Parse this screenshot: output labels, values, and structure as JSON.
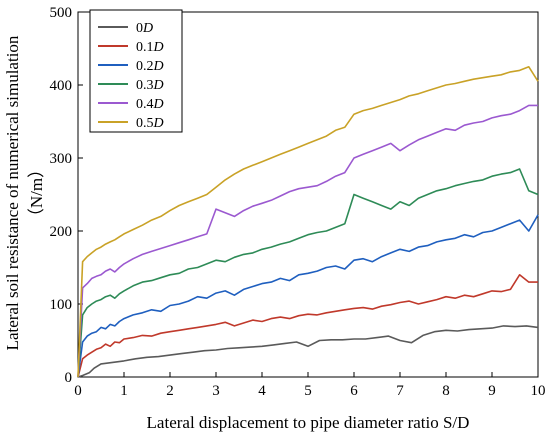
{
  "chart_data": {
    "type": "line",
    "xlabel": "Lateral displacement to pipe diameter ratio S/D",
    "ylabel_line1": "Lateral soil resistance of numerical simulation",
    "ylabel_line2": "（N/m）",
    "xlim": [
      0,
      10
    ],
    "ylim": [
      0,
      500
    ],
    "x_ticks": [
      0,
      1,
      2,
      3,
      4,
      5,
      6,
      7,
      8,
      9,
      10
    ],
    "y_ticks": [
      0,
      100,
      200,
      300,
      400,
      500
    ],
    "legend_position": "top-left",
    "grid": false,
    "series": [
      {
        "name": "0D",
        "color": "#5a5a5a",
        "x": [
          0,
          0.1,
          0.25,
          0.35,
          0.5,
          0.75,
          1,
          1.25,
          1.5,
          1.75,
          2,
          2.25,
          2.5,
          2.75,
          3,
          3.25,
          3.5,
          3.75,
          4,
          4.25,
          4.5,
          4.75,
          5,
          5.25,
          5.5,
          5.75,
          6,
          6.25,
          6.5,
          6.75,
          7,
          7.25,
          7.5,
          7.75,
          8,
          8.25,
          8.5,
          8.75,
          9,
          9.25,
          9.5,
          9.75,
          10
        ],
        "y": [
          0,
          2,
          6,
          12,
          18,
          20,
          22,
          25,
          27,
          28,
          30,
          32,
          34,
          36,
          37,
          39,
          40,
          41,
          42,
          44,
          46,
          48,
          42,
          50,
          51,
          51,
          52,
          52,
          54,
          56,
          50,
          47,
          57,
          62,
          64,
          63,
          65,
          66,
          67,
          70,
          69,
          70,
          68
        ]
      },
      {
        "name": "0.1D",
        "color": "#c0392b",
        "x": [
          0,
          0.1,
          0.2,
          0.3,
          0.4,
          0.5,
          0.6,
          0.7,
          0.8,
          0.9,
          1,
          1.2,
          1.4,
          1.6,
          1.8,
          2,
          2.2,
          2.4,
          2.6,
          2.8,
          3,
          3.2,
          3.4,
          3.6,
          3.8,
          4,
          4.2,
          4.4,
          4.6,
          4.8,
          5,
          5.2,
          5.4,
          5.6,
          5.8,
          6,
          6.2,
          6.4,
          6.6,
          6.8,
          7,
          7.2,
          7.4,
          7.6,
          7.8,
          8,
          8.2,
          8.4,
          8.6,
          8.8,
          9,
          9.2,
          9.4,
          9.6,
          9.8,
          10
        ],
        "y": [
          0,
          25,
          30,
          34,
          38,
          40,
          45,
          42,
          48,
          47,
          52,
          54,
          57,
          56,
          60,
          62,
          64,
          66,
          68,
          70,
          72,
          75,
          70,
          74,
          78,
          76,
          80,
          82,
          80,
          84,
          86,
          85,
          88,
          90,
          92,
          94,
          95,
          93,
          97,
          99,
          102,
          104,
          100,
          103,
          106,
          110,
          108,
          112,
          110,
          114,
          118,
          117,
          120,
          140,
          130,
          130
        ]
      },
      {
        "name": "0.2D",
        "color": "#1f5fbf",
        "x": [
          0,
          0.1,
          0.2,
          0.3,
          0.4,
          0.5,
          0.6,
          0.7,
          0.8,
          0.9,
          1,
          1.2,
          1.4,
          1.6,
          1.8,
          2,
          2.2,
          2.4,
          2.6,
          2.8,
          3,
          3.2,
          3.4,
          3.6,
          3.8,
          4,
          4.2,
          4.4,
          4.6,
          4.8,
          5,
          5.2,
          5.4,
          5.6,
          5.8,
          6,
          6.2,
          6.4,
          6.6,
          6.8,
          7,
          7.2,
          7.4,
          7.6,
          7.8,
          8,
          8.2,
          8.4,
          8.6,
          8.8,
          9,
          9.2,
          9.4,
          9.6,
          9.8,
          10
        ],
        "y": [
          0,
          48,
          56,
          60,
          62,
          68,
          66,
          72,
          70,
          76,
          80,
          85,
          88,
          92,
          90,
          98,
          100,
          104,
          110,
          108,
          115,
          118,
          112,
          120,
          124,
          128,
          130,
          135,
          132,
          140,
          142,
          145,
          150,
          152,
          148,
          160,
          162,
          158,
          165,
          170,
          175,
          172,
          178,
          180,
          185,
          188,
          190,
          195,
          192,
          198,
          200,
          205,
          210,
          215,
          200,
          222
        ]
      },
      {
        "name": "0.3D",
        "color": "#2e8b57",
        "x": [
          0,
          0.1,
          0.2,
          0.3,
          0.4,
          0.5,
          0.6,
          0.7,
          0.8,
          0.9,
          1,
          1.2,
          1.4,
          1.6,
          1.8,
          2,
          2.2,
          2.4,
          2.6,
          2.8,
          3,
          3.2,
          3.4,
          3.6,
          3.8,
          4,
          4.2,
          4.4,
          4.6,
          4.8,
          5,
          5.2,
          5.4,
          5.6,
          5.8,
          6,
          6.2,
          6.4,
          6.6,
          6.8,
          7,
          7.2,
          7.4,
          7.6,
          7.8,
          8,
          8.2,
          8.4,
          8.6,
          8.8,
          9,
          9.2,
          9.4,
          9.6,
          9.8,
          10
        ],
        "y": [
          0,
          85,
          95,
          100,
          104,
          106,
          110,
          112,
          108,
          114,
          118,
          125,
          130,
          132,
          136,
          140,
          142,
          148,
          150,
          155,
          160,
          158,
          164,
          168,
          170,
          175,
          178,
          182,
          185,
          190,
          195,
          198,
          200,
          205,
          210,
          250,
          245,
          240,
          235,
          230,
          240,
          235,
          245,
          250,
          255,
          258,
          262,
          265,
          268,
          270,
          275,
          278,
          280,
          285,
          255,
          250
        ]
      },
      {
        "name": "0.4D",
        "color": "#9b59d0",
        "x": [
          0,
          0.1,
          0.2,
          0.3,
          0.4,
          0.5,
          0.6,
          0.7,
          0.8,
          0.9,
          1,
          1.2,
          1.4,
          1.6,
          1.8,
          2,
          2.2,
          2.4,
          2.6,
          2.8,
          3,
          3.2,
          3.4,
          3.6,
          3.8,
          4,
          4.2,
          4.4,
          4.6,
          4.8,
          5,
          5.2,
          5.4,
          5.6,
          5.8,
          6,
          6.2,
          6.4,
          6.6,
          6.8,
          7,
          7.2,
          7.4,
          7.6,
          7.8,
          8,
          8.2,
          8.4,
          8.6,
          8.8,
          9,
          9.2,
          9.4,
          9.6,
          9.8,
          10
        ],
        "y": [
          0,
          122,
          128,
          135,
          138,
          140,
          145,
          148,
          144,
          150,
          155,
          162,
          168,
          172,
          176,
          180,
          184,
          188,
          192,
          196,
          230,
          225,
          220,
          228,
          234,
          238,
          242,
          248,
          254,
          258,
          260,
          262,
          268,
          275,
          280,
          300,
          305,
          310,
          315,
          320,
          310,
          318,
          325,
          330,
          335,
          340,
          338,
          345,
          348,
          350,
          355,
          358,
          360,
          365,
          372,
          372
        ]
      },
      {
        "name": "0.5D",
        "color": "#c9a227",
        "x": [
          0,
          0.1,
          0.2,
          0.3,
          0.4,
          0.5,
          0.6,
          0.7,
          0.8,
          0.9,
          1,
          1.2,
          1.4,
          1.6,
          1.8,
          2,
          2.2,
          2.4,
          2.6,
          2.8,
          3,
          3.2,
          3.4,
          3.6,
          3.8,
          4,
          4.2,
          4.4,
          4.6,
          4.8,
          5,
          5.2,
          5.4,
          5.6,
          5.8,
          6,
          6.2,
          6.4,
          6.6,
          6.8,
          7,
          7.2,
          7.4,
          7.6,
          7.8,
          8,
          8.2,
          8.4,
          8.6,
          8.8,
          9,
          9.2,
          9.4,
          9.6,
          9.8,
          10
        ],
        "y": [
          0,
          158,
          165,
          170,
          175,
          178,
          182,
          185,
          188,
          192,
          196,
          202,
          208,
          215,
          220,
          228,
          235,
          240,
          245,
          250,
          260,
          270,
          278,
          285,
          290,
          295,
          300,
          305,
          310,
          315,
          320,
          325,
          330,
          338,
          342,
          360,
          365,
          368,
          372,
          376,
          380,
          385,
          388,
          392,
          396,
          400,
          402,
          405,
          408,
          410,
          412,
          414,
          418,
          420,
          425,
          405
        ]
      }
    ]
  }
}
